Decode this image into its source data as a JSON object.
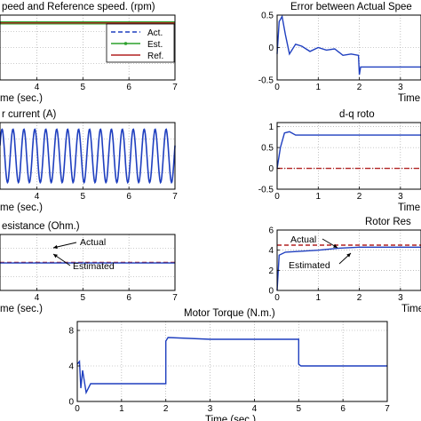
{
  "chart_data": [
    {
      "id": "p1",
      "type": "line",
      "title": "peed and Reference speed. (rpm)",
      "xlabel": "me (sec.)",
      "ylabel": "",
      "xlim": [
        3.2,
        7
      ],
      "ylim": [
        0,
        1
      ],
      "xticks": [
        "4",
        "5",
        "6",
        "7"
      ],
      "yticks": [],
      "legend": {
        "position": "top-right",
        "entries": [
          "Act.",
          "Est.",
          "Ref."
        ]
      },
      "series": [
        {
          "name": "Act.",
          "color": "#1f3fbf",
          "style": "dashed",
          "x": [
            3.2,
            7
          ],
          "y": [
            0.88,
            0.88
          ]
        },
        {
          "name": "Est.",
          "color": "#2ca02c",
          "style": "marker",
          "x": [
            3.2,
            7
          ],
          "y": [
            0.88,
            0.88
          ]
        },
        {
          "name": "Ref.",
          "color": "#b22222",
          "style": "solid",
          "x": [
            3.2,
            7
          ],
          "y": [
            0.88,
            0.88
          ]
        }
      ]
    },
    {
      "id": "p2",
      "type": "line",
      "title": "Error between Actual Spee",
      "xlabel": "Time",
      "ylabel": "",
      "xlim": [
        0,
        3.5
      ],
      "ylim": [
        -0.5,
        0.5
      ],
      "xticks": [
        "0",
        "1",
        "2",
        "3"
      ],
      "yticks": [
        "0.5",
        "0",
        "-0.5"
      ],
      "series": [
        {
          "name": "",
          "color": "#1f3fbf",
          "x": [
            0,
            0.05,
            0.12,
            0.2,
            0.3,
            0.45,
            0.6,
            0.8,
            1.0,
            1.2,
            1.4,
            1.6,
            1.8,
            1.98,
            2.0,
            2.03,
            2.2,
            2.6,
            3.0,
            3.5
          ],
          "y": [
            -0.1,
            0.4,
            0.48,
            0.2,
            -0.1,
            0.05,
            0.02,
            -0.06,
            0.0,
            -0.04,
            -0.02,
            -0.12,
            -0.1,
            -0.12,
            -0.42,
            -0.3,
            -0.3,
            -0.3,
            -0.3,
            -0.3
          ]
        }
      ]
    },
    {
      "id": "p3",
      "type": "line",
      "title": "r current (A)",
      "xlabel": "me (sec.)",
      "ylabel": "",
      "xlim": [
        3.2,
        7
      ],
      "ylim": [
        -1,
        1
      ],
      "xticks": [
        "4",
        "5",
        "6",
        "7"
      ],
      "yticks": [],
      "series": [
        {
          "name": "",
          "color": "#1f3fbf",
          "waveform": "sine",
          "cycles": 16,
          "amplitude": 0.8
        }
      ]
    },
    {
      "id": "p4",
      "type": "line",
      "title": "d-q roto",
      "xlabel": "Time",
      "ylabel": "",
      "xlim": [
        0,
        3.5
      ],
      "ylim": [
        -0.5,
        1.1
      ],
      "xticks": [
        "0",
        "1",
        "2",
        "3"
      ],
      "yticks": [
        "1",
        "0.5",
        "0",
        "-0.5"
      ],
      "series": [
        {
          "name": "",
          "color": "#1f3fbf",
          "x": [
            0,
            0.08,
            0.18,
            0.3,
            0.45,
            0.6,
            1.0,
            2.0,
            3.5
          ],
          "y": [
            0,
            0.5,
            0.85,
            0.88,
            0.8,
            0.8,
            0.8,
            0.8,
            0.8
          ]
        },
        {
          "name": "",
          "color": "#b22222",
          "style": "dashdot",
          "x": [
            0,
            3.5
          ],
          "y": [
            0,
            0
          ]
        }
      ]
    },
    {
      "id": "p5",
      "type": "line",
      "title": "esistance (Ohm.)",
      "xlabel": "me (sec.)",
      "ylabel": "",
      "xlim": [
        3.2,
        7
      ],
      "ylim": [
        0,
        1
      ],
      "xticks": [
        "4",
        "5",
        "6",
        "7"
      ],
      "yticks": [],
      "annotations": [
        "Actual",
        "Estimated"
      ],
      "series": [
        {
          "name": "",
          "color": "#b22222",
          "style": "dashed",
          "x": [
            3.2,
            7
          ],
          "y": [
            0.5,
            0.5
          ]
        },
        {
          "name": "",
          "color": "#1f3fbf",
          "x": [
            3.2,
            7
          ],
          "y": [
            0.49,
            0.49
          ]
        }
      ]
    },
    {
      "id": "p6",
      "type": "line",
      "title": "Rotor Res",
      "xlabel": "Time",
      "ylabel": "",
      "xlim": [
        0,
        3.5
      ],
      "ylim": [
        0,
        6
      ],
      "xticks": [
        "0",
        "1",
        "2",
        "3"
      ],
      "yticks": [
        "6",
        "4",
        "2",
        "0"
      ],
      "annotations": [
        "Actual",
        "Estimated"
      ],
      "series": [
        {
          "name": "",
          "color": "#b22222",
          "style": "dashed",
          "x": [
            0,
            3.5
          ],
          "y": [
            4.5,
            4.5
          ]
        },
        {
          "name": "",
          "color": "#1f3fbf",
          "x": [
            0,
            0.05,
            0.2,
            0.6,
            1.0,
            1.5,
            2.0,
            3.5
          ],
          "y": [
            0,
            3.5,
            3.8,
            3.9,
            4.0,
            4.2,
            4.3,
            4.3
          ]
        }
      ]
    },
    {
      "id": "p7",
      "type": "line",
      "title": "Motor Torque (N.m.)",
      "xlabel": "Time (sec.)",
      "ylabel": "",
      "xlim": [
        0,
        7
      ],
      "ylim": [
        0,
        9
      ],
      "xticks": [
        "0",
        "1",
        "2",
        "3",
        "4",
        "5",
        "6",
        "7"
      ],
      "yticks": [
        "8",
        "4",
        "0"
      ],
      "series": [
        {
          "name": "",
          "color": "#1f3fbf",
          "x": [
            0,
            0.05,
            0.08,
            0.12,
            0.2,
            0.3,
            0.5,
            1.0,
            1.5,
            2.0,
            2.0,
            2.05,
            3.0,
            4.0,
            5.0,
            5.0,
            5.05,
            6.0,
            7.0
          ],
          "y": [
            4.2,
            4.5,
            1.5,
            3.5,
            1.0,
            2.0,
            2.0,
            2.0,
            2.0,
            2.0,
            6.8,
            7.2,
            7.0,
            7.0,
            7.0,
            4.2,
            4.0,
            4.0,
            4.0
          ]
        }
      ]
    }
  ]
}
